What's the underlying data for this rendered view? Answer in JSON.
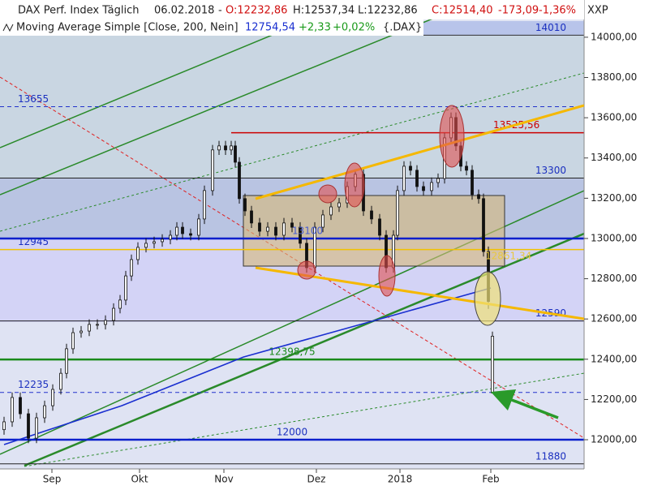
{
  "header": {
    "title": "DAX Perf. Index Täglich",
    "date": "06.02.2018",
    "dash": "-",
    "open": "O:12232,86",
    "high": "H:12537,34",
    "low": "L:12232,86",
    "close": "C:12514,40",
    "change": "-173,09",
    "change_pct": "-1,36%",
    "indicator": "Moving Average Simple [Close, 200, Nein]",
    "ma_value": "12754,54",
    "ma_change": "+2,33",
    "ma_change_pct": "+0,02%",
    "symbol": "{.DAX}",
    "currency": "XXP"
  },
  "chart_data": {
    "type": "candlestick",
    "x": [
      1,
      3,
      5,
      7,
      9,
      11,
      13,
      15,
      16.4,
      18,
      20,
      22,
      24,
      26,
      28,
      29.6,
      31,
      32.4,
      34,
      36,
      38,
      40,
      42,
      43.6,
      45,
      47,
      49,
      50.4,
      52.4,
      54,
      55.6,
      57,
      58,
      59,
      60.4,
      62,
      64,
      66,
      68,
      70,
      72,
      74,
      75.6,
      77.6,
      79.6,
      81.6,
      83.6,
      85.6,
      87.6,
      89.6,
      91.6,
      93.6,
      95.2,
      97,
      98,
      99.6,
      101.2,
      102.8,
      104.4,
      106.4,
      108,
      109.6,
      111.2,
      112.4,
      113.6,
      115,
      116.4,
      118,
      119.2,
      120.4,
      121.4
    ],
    "open": [
      12050,
      12089,
      12210,
      12129,
      12008,
      12109,
      12169,
      12250,
      12330,
      12452,
      12532,
      12540,
      12573,
      12573,
      12593,
      12653,
      12694,
      12814,
      12895,
      12956,
      12976,
      12984,
      12996,
      13016,
      13056,
      13024,
      13016,
      13097,
      13238,
      13440,
      13460,
      13440,
      13460,
      13379,
      13198,
      13137,
      13077,
      13036,
      13056,
      13016,
      13077,
      13056,
      12976,
      12855,
      13056,
      13117,
      13157,
      13177,
      13258,
      13319,
      13137,
      13097,
      13016,
      12855,
      13016,
      13238,
      13359,
      13339,
      13258,
      13238,
      13278,
      13298,
      13500,
      13601,
      13460,
      13359,
      13339,
      13218,
      13198,
      12935,
      12232.86
    ],
    "high": [
      12114,
      12235,
      12235,
      12154,
      12134,
      12194,
      12275,
      12355,
      12477,
      12557,
      12565,
      12598,
      12598,
      12618,
      12678,
      12719,
      12839,
      12920,
      12981,
      13001,
      13009,
      13021,
      13041,
      13081,
      13081,
      13049,
      13122,
      13263,
      13465,
      13485,
      13485,
      13485,
      13485,
      13404,
      13223,
      13162,
      13102,
      13081,
      13081,
      13102,
      13102,
      13081,
      13001,
      13081,
      13142,
      13182,
      13202,
      13283,
      13344,
      13344,
      13162,
      13122,
      13041,
      13041,
      13263,
      13384,
      13384,
      13364,
      13283,
      13303,
      13323,
      13525,
      13626,
      13626,
      13485,
      13384,
      13364,
      13243,
      13223,
      12960,
      12537.34
    ],
    "low": [
      12025,
      12064,
      12104,
      11983,
      11983,
      12084,
      12144,
      12225,
      12305,
      12427,
      12507,
      12515,
      12548,
      12548,
      12568,
      12628,
      12669,
      12789,
      12870,
      12931,
      12951,
      12959,
      12971,
      12991,
      12999,
      12991,
      12991,
      13072,
      13213,
      13415,
      13415,
      13415,
      13354,
      13173,
      13112,
      13052,
      13011,
      13011,
      12991,
      12991,
      13031,
      12951,
      12830,
      12830,
      13031,
      13092,
      13132,
      13152,
      13233,
      13112,
      13072,
      12991,
      12830,
      12830,
      12991,
      13213,
      13314,
      13233,
      13213,
      13213,
      13253,
      13273,
      13475,
      13435,
      13334,
      13314,
      13193,
      13173,
      12910,
      12650,
      12232.86
    ],
    "close": [
      12089,
      12210,
      12129,
      12008,
      12109,
      12169,
      12250,
      12330,
      12452,
      12532,
      12540,
      12573,
      12573,
      12593,
      12653,
      12694,
      12814,
      12895,
      12956,
      12976,
      12984,
      12996,
      13016,
      13056,
      13024,
      13016,
      13097,
      13238,
      13440,
      13460,
      13440,
      13460,
      13379,
      13198,
      13137,
      13077,
      13036,
      13056,
      13016,
      13077,
      13056,
      12976,
      12855,
      13056,
      13117,
      13157,
      13177,
      13258,
      13319,
      13137,
      13097,
      13016,
      12855,
      13016,
      13238,
      13359,
      13339,
      13258,
      13238,
      13278,
      13298,
      13500,
      13601,
      13460,
      13359,
      13339,
      13218,
      13198,
      12935,
      12687,
      12514.4
    ],
    "ma": {
      "color": "#1a2fd0",
      "x": [
        1,
        30,
        60,
        96,
        121
      ],
      "values": [
        11976,
        12169,
        12411,
        12613,
        12754
      ]
    },
    "levels": [
      {
        "value": 14010,
        "label": "14010",
        "color": "#333333"
      },
      {
        "value": 13655,
        "label": "13655",
        "color": "#2233cc",
        "dashed": true
      },
      {
        "value": 13525.56,
        "label": "13525,56",
        "color": "#cc0000",
        "from": 57
      },
      {
        "value": 13300,
        "label": "13300",
        "color": "#222222"
      },
      {
        "value": 12945,
        "label": "12945",
        "color": "#f2c200"
      },
      {
        "value": 12590,
        "label": "12590",
        "color": "#222222"
      },
      {
        "value": 12398.75,
        "label": "12398,75",
        "color": "#1a8a1a"
      },
      {
        "value": 12235,
        "label": "12235",
        "color": "#2233cc",
        "dashed": true
      },
      {
        "value": 12000,
        "label": "12000",
        "color": "#0a1fcc"
      },
      {
        "value": 11880,
        "label": "11880",
        "color": "#222222"
      },
      {
        "value": 13000,
        "color": "#0a1fcc"
      }
    ],
    "annotations": [
      {
        "text": "13100"
      },
      {
        "text": "12861,34"
      }
    ],
    "xlim": [
      0,
      144
    ],
    "ylim": [
      11855,
      14185
    ],
    "xticks": [
      {
        "value": 12.8,
        "label": "Sep"
      },
      {
        "value": 34.4,
        "label": "Okt"
      },
      {
        "value": 55.2,
        "label": "Nov"
      },
      {
        "value": 78,
        "label": "Dez"
      },
      {
        "value": 98.6,
        "label": "2018"
      },
      {
        "value": 121,
        "label": "Feb"
      }
    ],
    "yticks": [
      {
        "value": 12000,
        "label": "12000,00"
      },
      {
        "value": 12200,
        "label": "12200,00"
      },
      {
        "value": 12400,
        "label": "12400,00"
      },
      {
        "value": 12600,
        "label": "12600,00"
      },
      {
        "value": 12800,
        "label": "12800,00"
      },
      {
        "value": 13000,
        "label": "13000,00"
      },
      {
        "value": 13200,
        "label": "13200,00"
      },
      {
        "value": 13400,
        "label": "13400,00"
      },
      {
        "value": 13600,
        "label": "13600,00"
      },
      {
        "value": 13800,
        "label": "13800,00"
      },
      {
        "value": 14000,
        "label": "14000,00"
      }
    ]
  }
}
